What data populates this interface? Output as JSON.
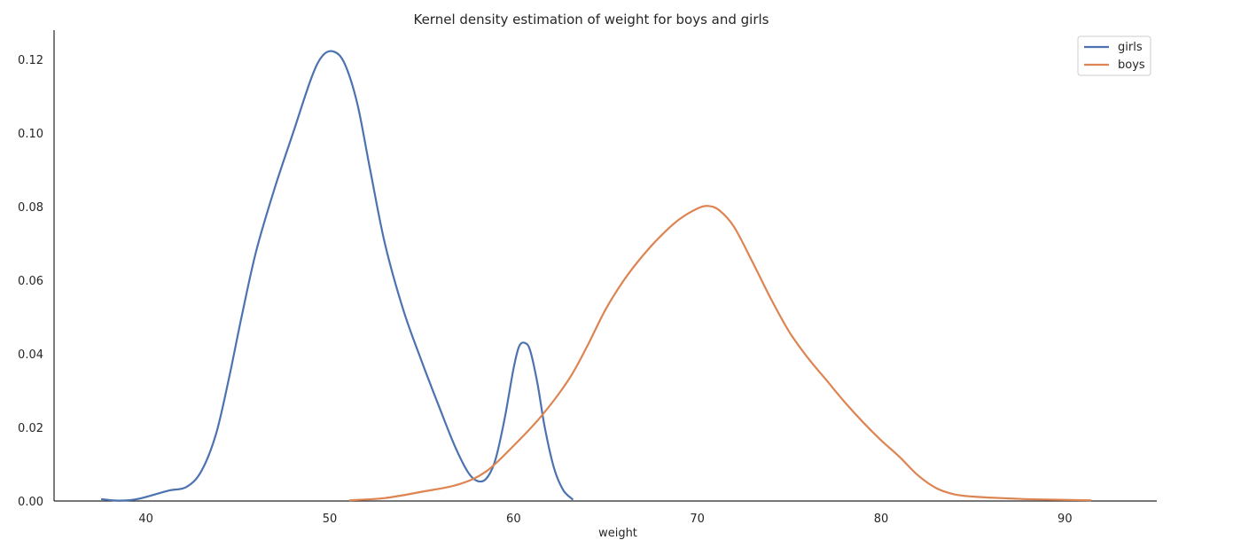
{
  "chart_data": {
    "type": "line",
    "title": "Kernel density estimation of weight for boys and girls",
    "xlabel": "weight",
    "ylabel": "",
    "xlim": [
      35,
      95
    ],
    "ylim": [
      0,
      0.128
    ],
    "xticks": [
      40,
      50,
      60,
      70,
      80,
      90
    ],
    "yticks": [
      0.0,
      0.02,
      0.04,
      0.06,
      0.08,
      0.1,
      0.12
    ],
    "xtick_labels": [
      "40",
      "50",
      "60",
      "70",
      "80",
      "90"
    ],
    "ytick_labels": [
      "0.00",
      "0.02",
      "0.04",
      "0.06",
      "0.08",
      "0.10",
      "0.12"
    ],
    "grid": false,
    "legend_position": "top-right",
    "series": [
      {
        "name": "girls",
        "color": "#4c72b0",
        "x": [
          37.6,
          38.5,
          39.5,
          40.5,
          41.3,
          42.2,
          43.0,
          43.8,
          44.5,
          45.2,
          46.0,
          47.0,
          48.0,
          49.0,
          49.6,
          50.2,
          50.8,
          51.5,
          52.2,
          53.0,
          54.0,
          55.0,
          56.0,
          56.8,
          57.5,
          58.0,
          58.5,
          59.0,
          59.5,
          60.0,
          60.3,
          60.6,
          60.9,
          61.3,
          61.7,
          62.2,
          62.7,
          63.2
        ],
        "y": [
          0.0005,
          0.0001,
          0.0005,
          0.0018,
          0.0029,
          0.0038,
          0.008,
          0.018,
          0.033,
          0.05,
          0.068,
          0.085,
          0.1,
          0.115,
          0.121,
          0.1222,
          0.119,
          0.108,
          0.09,
          0.07,
          0.052,
          0.038,
          0.025,
          0.015,
          0.008,
          0.0055,
          0.006,
          0.011,
          0.022,
          0.036,
          0.042,
          0.043,
          0.041,
          0.032,
          0.02,
          0.009,
          0.003,
          0.0005
        ]
      },
      {
        "name": "boys",
        "color": "#dd8452",
        "x": [
          51.1,
          53.0,
          55.0,
          57.0,
          58.5,
          60.0,
          61.5,
          63.0,
          64.0,
          65.0,
          66.0,
          67.0,
          68.0,
          69.0,
          70.0,
          70.6,
          71.2,
          72.0,
          73.0,
          74.0,
          75.0,
          76.0,
          77.0,
          78.0,
          79.0,
          80.0,
          81.0,
          82.0,
          83.0,
          84.0,
          85.0,
          86.0,
          87.0,
          88.0,
          89.0,
          90.0,
          91.4
        ],
        "y": [
          0.0002,
          0.0008,
          0.0025,
          0.0045,
          0.008,
          0.015,
          0.023,
          0.033,
          0.042,
          0.052,
          0.06,
          0.0665,
          0.072,
          0.0765,
          0.0795,
          0.0802,
          0.079,
          0.0745,
          0.065,
          0.055,
          0.046,
          0.039,
          0.033,
          0.027,
          0.0215,
          0.0165,
          0.012,
          0.007,
          0.0035,
          0.0018,
          0.0012,
          0.0009,
          0.0007,
          0.0005,
          0.0004,
          0.0003,
          0.0002
        ]
      }
    ]
  }
}
